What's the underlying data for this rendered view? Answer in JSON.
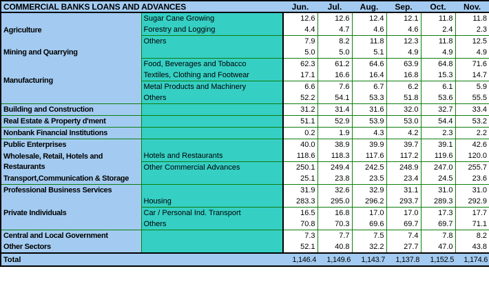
{
  "title": "COMMERCIAL BANKS LOANS AND ADVANCES",
  "months": [
    "Jun.",
    "Jul.",
    "Aug.",
    "Sep.",
    "Oct.",
    "Nov."
  ],
  "colors": {
    "header_and_label_blue": "#a3cbf1",
    "subcategory_teal": "#36cfc4",
    "gridline_green": "#0a7d0a",
    "border_black": "#000000",
    "value_cell_white": "#ffffff"
  },
  "rows": [
    {
      "cat": "Agriculture",
      "cat_span": 3,
      "cat_border": false,
      "sub": "Sugar Cane Growing",
      "hline": "none",
      "values": [
        "12.6",
        "12.6",
        "12.4",
        "12.1",
        "11.8",
        "11.8"
      ]
    },
    {
      "cat": null,
      "sub": "Forestry and Logging",
      "hline": "sub",
      "values": [
        "4.4",
        "4.7",
        "4.6",
        "4.6",
        "2.4",
        "2.3"
      ]
    },
    {
      "cat": null,
      "sub": "Others",
      "hline": "none",
      "values": [
        "7.9",
        "8.2",
        "11.8",
        "12.3",
        "11.8",
        "12.5"
      ]
    },
    {
      "cat": "Mining and Quarrying",
      "cat_span": 1,
      "cat_border": false,
      "sub": "",
      "hline": "sub",
      "values": [
        "5.0",
        "5.0",
        "5.1",
        "4.9",
        "4.9",
        "4.9"
      ]
    },
    {
      "cat": "Manufacturing",
      "cat_span": 4,
      "cat_border": true,
      "sub": "Food, Beverages and Tobacco",
      "hline": "none",
      "values": [
        "62.3",
        "61.2",
        "64.6",
        "63.9",
        "64.8",
        "71.6"
      ]
    },
    {
      "cat": null,
      "sub": "Textiles, Clothing and Footwear",
      "hline": "sub",
      "values": [
        "17.1",
        "16.6",
        "16.4",
        "16.8",
        "15.3",
        "14.7"
      ]
    },
    {
      "cat": null,
      "sub": "Metal Products and Machinery",
      "hline": "none",
      "values": [
        "6.6",
        "7.6",
        "6.7",
        "6.2",
        "6.1",
        "5.9"
      ]
    },
    {
      "cat": null,
      "sub": "Others",
      "hline": "full",
      "values": [
        "52.2",
        "54.1",
        "53.3",
        "51.8",
        "53.6",
        "55.5"
      ]
    },
    {
      "cat": "Building and Construction",
      "cat_span": 1,
      "cat_border": false,
      "sub": "",
      "hline": "full",
      "values": [
        "31.2",
        "31.4",
        "31.6",
        "32.0",
        "32.7",
        "33.4"
      ]
    },
    {
      "cat": "Real Estate & Property d'ment",
      "cat_span": 1,
      "cat_border": false,
      "sub": "",
      "hline": "full",
      "values": [
        "51.1",
        "52.9",
        "53.9",
        "53.0",
        "54.4",
        "53.2"
      ]
    },
    {
      "cat": "Nonbank Financial Institutions",
      "cat_span": 1,
      "cat_border": false,
      "sub": "",
      "hline": "full",
      "values": [
        "0.2",
        "1.9",
        "4.3",
        "4.2",
        "2.3",
        "2.2"
      ]
    },
    {
      "cat": "Public Enterprises",
      "cat_span": 1,
      "cat_border": false,
      "sub": "",
      "hline": "none",
      "values": [
        "40.0",
        "38.9",
        "39.9",
        "39.7",
        "39.1",
        "42.6"
      ]
    },
    {
      "cat": "Wholesale, Retail, Hotels and Restaurants",
      "cat_span": 2,
      "cat_border": false,
      "cat_wrap": true,
      "sub": "Hotels and Restaurants",
      "hline": "sub",
      "values": [
        "118.6",
        "118.3",
        "117.6",
        "117.2",
        "119.6",
        "120.0"
      ]
    },
    {
      "cat": null,
      "sub": "Other Commercial Advances",
      "hline": "none",
      "values": [
        "250.1",
        "249.4",
        "242.5",
        "248.9",
        "247.0",
        "255.7"
      ]
    },
    {
      "cat": "Transport,Communication & Storage",
      "cat_span": 1,
      "cat_border": false,
      "sub": "",
      "hline": "full",
      "values": [
        "25.1",
        "23.8",
        "23.5",
        "23.4",
        "24.5",
        "23.6"
      ]
    },
    {
      "cat": "Professional Business Services",
      "cat_span": 1,
      "cat_border": false,
      "sub": "",
      "hline": "none",
      "values": [
        "31.9",
        "32.6",
        "32.9",
        "31.1",
        "31.0",
        "31.0"
      ]
    },
    {
      "cat": "Private Individuals",
      "cat_span": 3,
      "cat_border": true,
      "sub": "Housing",
      "hline": "sub",
      "values": [
        "283.3",
        "295.0",
        "296.2",
        "293.7",
        "289.3",
        "292.9"
      ]
    },
    {
      "cat": null,
      "sub": "Car / Personal Ind. Transport",
      "hline": "none",
      "values": [
        "16.5",
        "16.8",
        "17.0",
        "17.0",
        "17.3",
        "17.7"
      ]
    },
    {
      "cat": null,
      "sub": "Others",
      "hline": "full",
      "values": [
        "70.8",
        "70.3",
        "69.6",
        "69.7",
        "69.7",
        "71.1"
      ]
    },
    {
      "cat": "Central and Local Government",
      "cat_span": 1,
      "cat_border": false,
      "sub": "",
      "hline": "none",
      "values": [
        "7.3",
        "7.7",
        "7.5",
        "7.4",
        "7.8",
        "8.2"
      ]
    },
    {
      "cat": "Other Sectors",
      "cat_span": 1,
      "cat_border": false,
      "sub": "",
      "hline": "none",
      "values": [
        "52.1",
        "40.8",
        "32.2",
        "27.7",
        "47.0",
        "43.8"
      ]
    }
  ],
  "total": {
    "label": "Total",
    "values": [
      "1,146.4",
      "1,149.6",
      "1,143.7",
      "1,137.8",
      "1,152.5",
      "1,174.6"
    ]
  }
}
